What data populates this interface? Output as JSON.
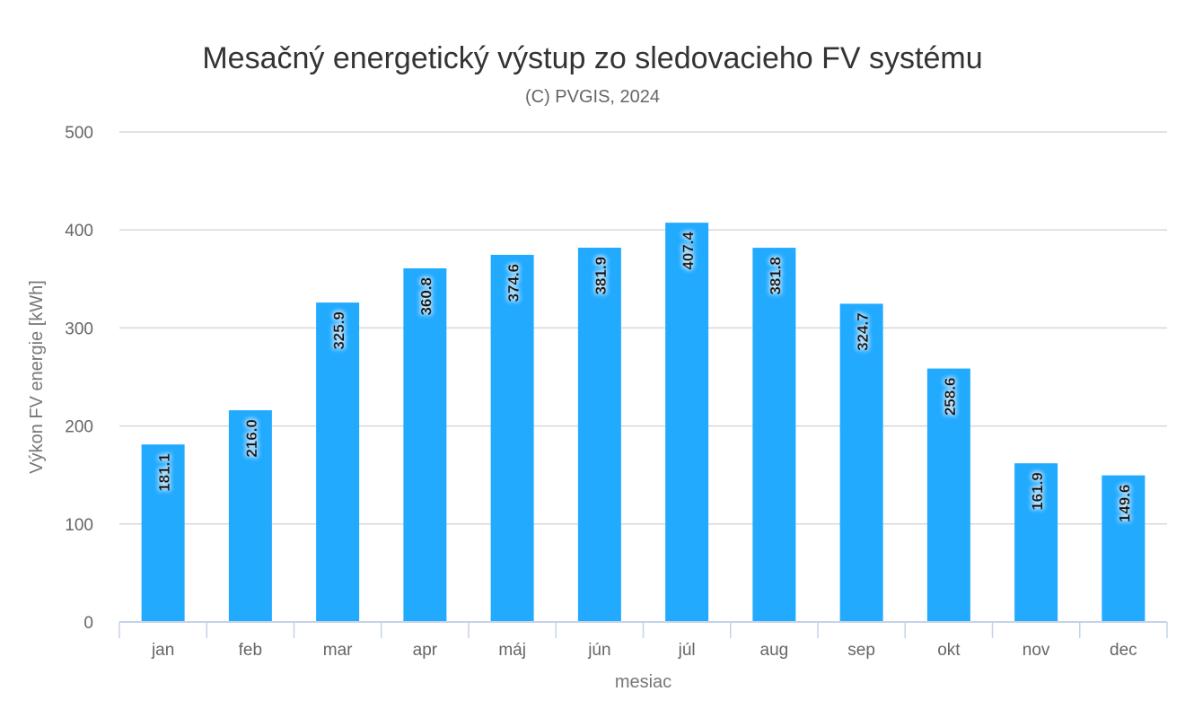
{
  "chart_data": {
    "type": "bar",
    "title": "Mesačný energetický výstup zo sledovacieho FV systému",
    "subtitle": "(C) PVGIS, 2024",
    "xlabel": "mesiac",
    "ylabel": "Výkon FV energie [kWh]",
    "categories": [
      "jan",
      "feb",
      "mar",
      "apr",
      "máj",
      "jún",
      "júl",
      "aug",
      "sep",
      "okt",
      "nov",
      "dec"
    ],
    "values": [
      181.1,
      216.0,
      325.9,
      360.8,
      374.6,
      381.9,
      407.4,
      381.8,
      324.7,
      258.6,
      161.9,
      149.6
    ],
    "data_labels": [
      "181.1",
      "216.0",
      "325.9",
      "360.8",
      "374.6",
      "381.9",
      "407.4",
      "381.8",
      "324.7",
      "258.6",
      "161.9",
      "149.6"
    ],
    "ylim": [
      0,
      500
    ],
    "yticks": [
      0,
      100,
      200,
      300,
      400,
      500
    ],
    "grid": true,
    "legend": "none",
    "bar_color": "#22aaff"
  }
}
